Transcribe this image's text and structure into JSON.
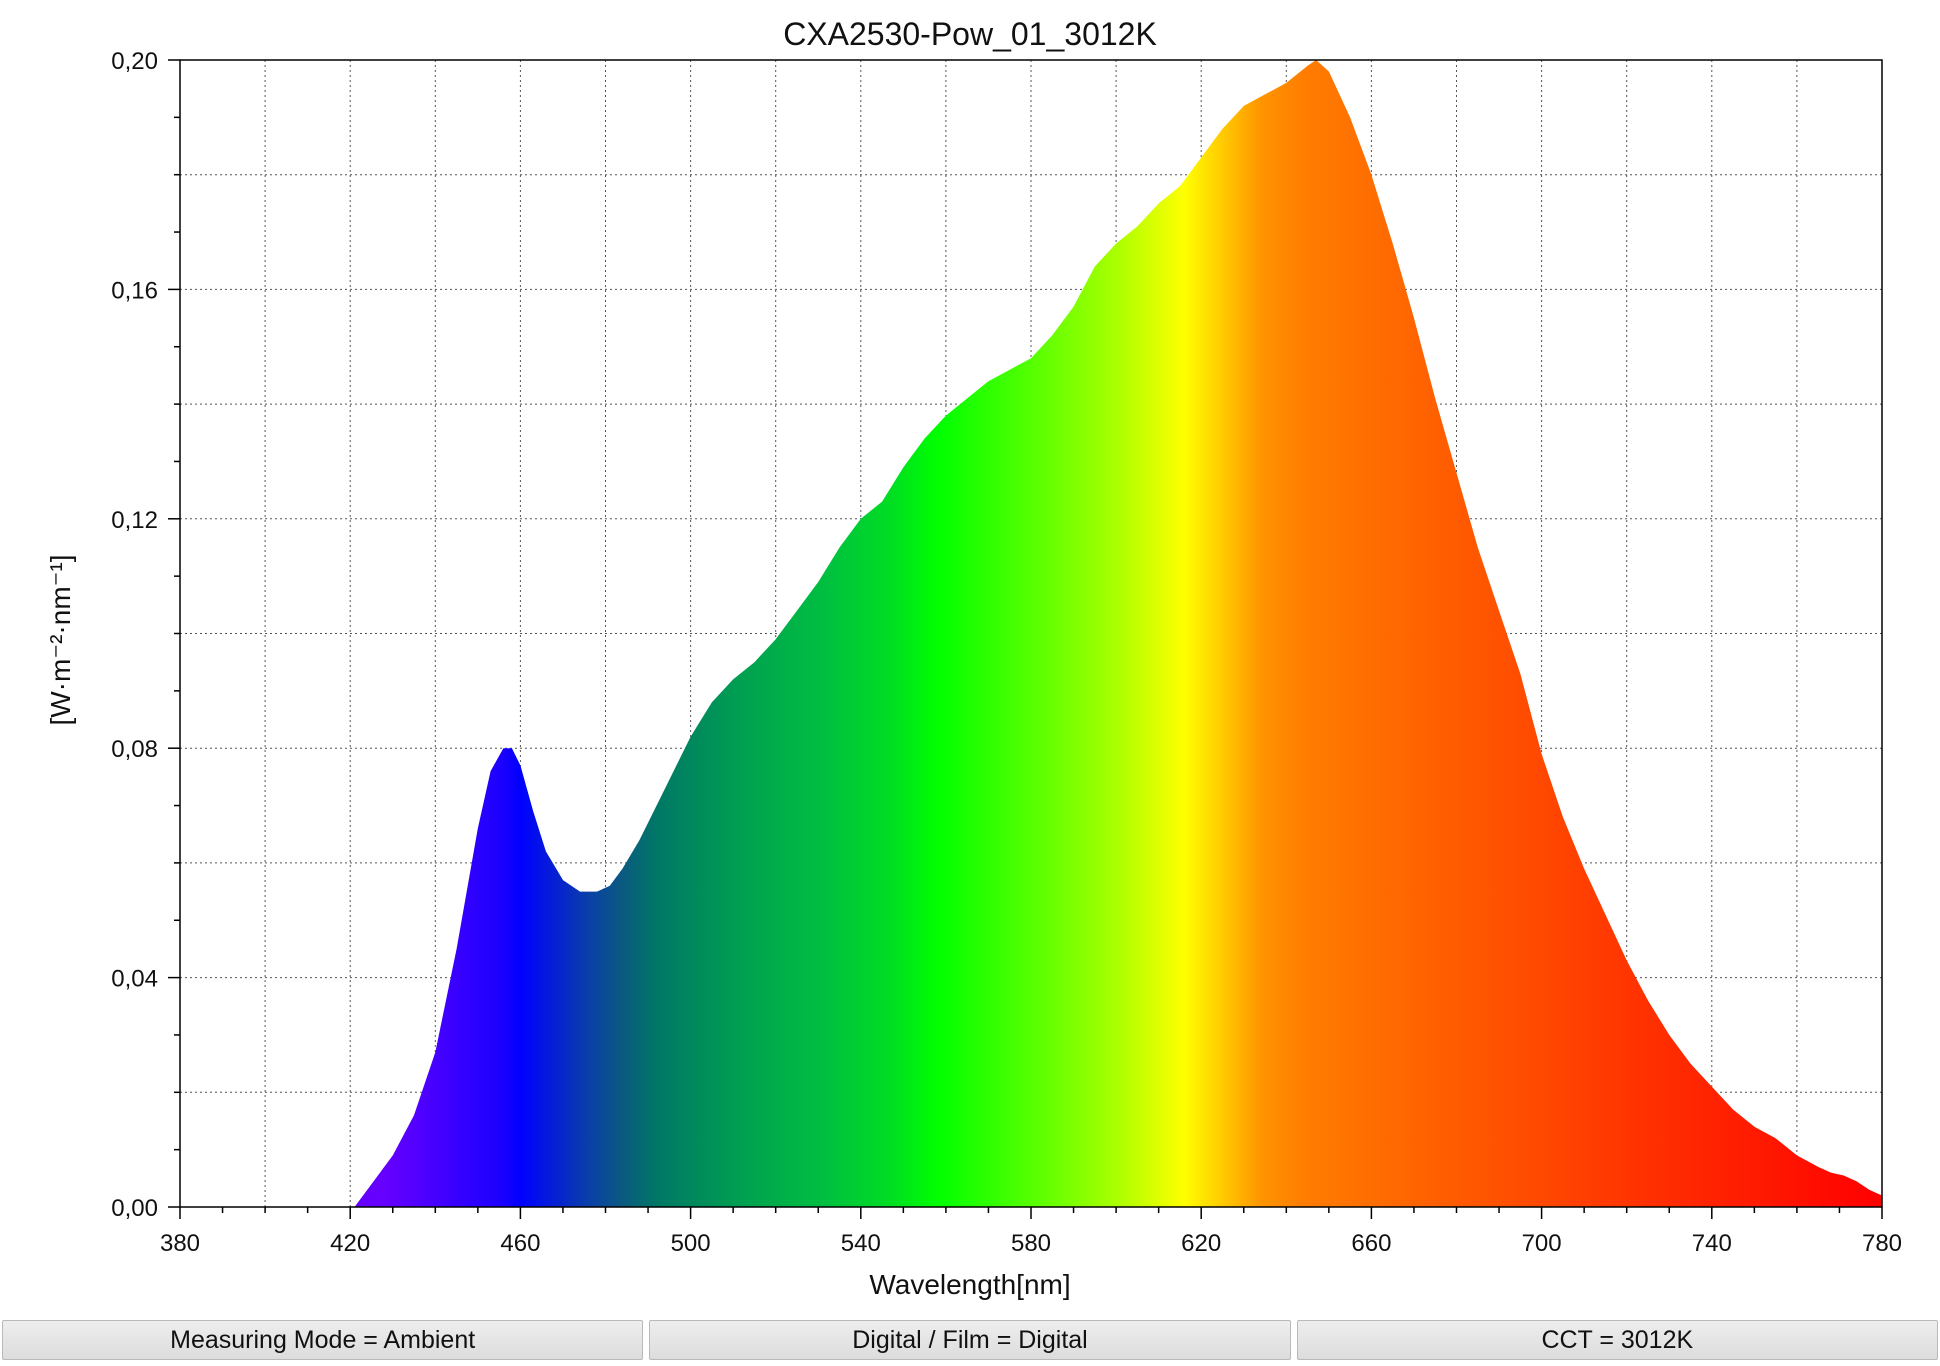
{
  "chart_data": {
    "type": "area",
    "title": "CXA2530-Pow_01_3012K",
    "xlabel": "Wavelength[nm]",
    "ylabel": "[W·m⁻²·nm⁻¹]",
    "xlim": [
      380,
      780
    ],
    "ylim": [
      0,
      0.2
    ],
    "x_ticks": [
      "380",
      "420",
      "460",
      "500",
      "540",
      "580",
      "620",
      "660",
      "700",
      "740",
      "780"
    ],
    "y_ticks": [
      "0,00",
      "0,04",
      "0,08",
      "0,12",
      "0,16",
      "0,20"
    ],
    "grid": true,
    "fill": "visible-spectrum gradient",
    "series": [
      {
        "x": [
          421,
          425,
          430,
          435,
          440,
          445,
          450,
          453,
          456,
          458,
          460,
          463,
          466,
          470,
          474,
          478,
          481,
          484,
          488,
          492,
          496,
          500,
          505,
          510,
          515,
          520,
          525,
          530,
          535,
          540,
          545,
          550,
          555,
          560,
          565,
          570,
          575,
          580,
          585,
          590,
          595,
          600,
          605,
          610,
          615,
          620,
          625,
          630,
          635,
          640,
          645,
          647,
          650,
          655,
          660,
          665,
          670,
          675,
          680,
          685,
          690,
          695,
          700,
          705,
          710,
          715,
          720,
          725,
          730,
          735,
          740,
          745,
          750,
          755,
          760,
          765,
          768,
          771,
          774,
          777,
          780
        ],
        "y": [
          0.0,
          0.004,
          0.009,
          0.016,
          0.027,
          0.045,
          0.066,
          0.076,
          0.08,
          0.08,
          0.077,
          0.069,
          0.062,
          0.057,
          0.055,
          0.055,
          0.056,
          0.059,
          0.064,
          0.07,
          0.076,
          0.082,
          0.088,
          0.092,
          0.095,
          0.099,
          0.104,
          0.109,
          0.115,
          0.12,
          0.123,
          0.129,
          0.134,
          0.138,
          0.141,
          0.144,
          0.146,
          0.148,
          0.152,
          0.157,
          0.164,
          0.168,
          0.171,
          0.175,
          0.178,
          0.183,
          0.188,
          0.192,
          0.194,
          0.196,
          0.199,
          0.2,
          0.198,
          0.19,
          0.18,
          0.168,
          0.155,
          0.141,
          0.128,
          0.115,
          0.104,
          0.093,
          0.079,
          0.068,
          0.059,
          0.051,
          0.043,
          0.036,
          0.03,
          0.025,
          0.021,
          0.017,
          0.014,
          0.012,
          0.009,
          0.007,
          0.006,
          0.0055,
          0.0045,
          0.003,
          0.002
        ]
      }
    ]
  },
  "status_bar": {
    "measuring_mode": "Measuring Mode = Ambient",
    "digital_film": "Digital / Film = Digital",
    "cct": "CCT = 3012K"
  }
}
